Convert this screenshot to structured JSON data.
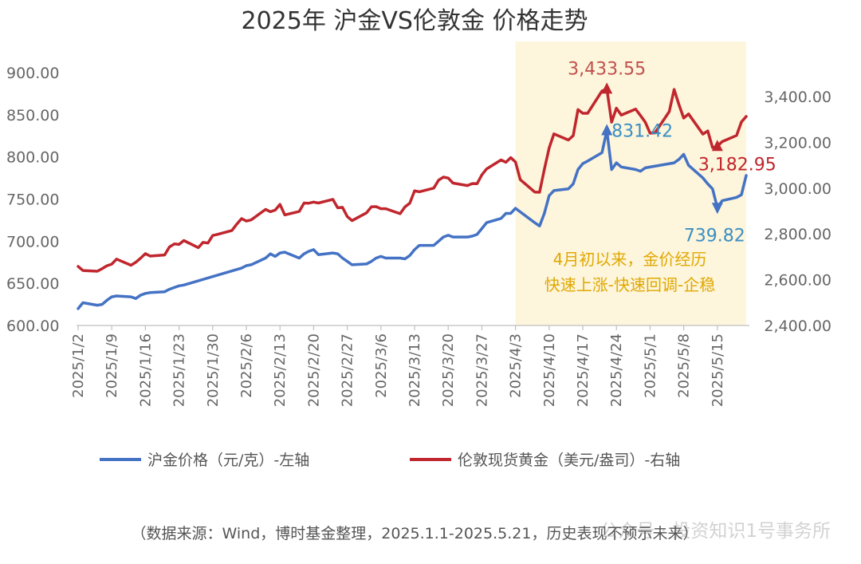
{
  "chart_data": {
    "type": "line",
    "title": "2025年 沪金VS伦敦金 价格走势",
    "x_ticks": [
      "2025/1/2",
      "2025/1/9",
      "2025/1/16",
      "2025/1/23",
      "2025/1/30",
      "2025/2/6",
      "2025/2/13",
      "2025/2/20",
      "2025/2/27",
      "2025/3/6",
      "2025/3/13",
      "2025/3/20",
      "2025/3/27",
      "2025/4/3",
      "2025/4/10",
      "2025/4/17",
      "2025/4/24",
      "2025/5/1",
      "2025/5/8",
      "2025/5/15"
    ],
    "y_left": {
      "ticks": [
        "600.00",
        "650.00",
        "700.00",
        "750.00",
        "800.00",
        "850.00",
        "900.00"
      ],
      "ylim": [
        600,
        900
      ]
    },
    "y_right": {
      "ticks": [
        "2,400.00",
        "2,600.00",
        "2,800.00",
        "3,000.00",
        "3,200.00",
        "3,400.00"
      ],
      "ylim": [
        2400,
        3500
      ]
    },
    "series": [
      {
        "name": "沪金价格（元/克）-左轴",
        "axis": "left",
        "color": "#4472c4",
        "points": [
          [
            "2025/1/2",
            620
          ],
          [
            "2025/1/3",
            627
          ],
          [
            "2025/1/6",
            624
          ],
          [
            "2025/1/7",
            625
          ],
          [
            "2025/1/8",
            630
          ],
          [
            "2025/1/9",
            634
          ],
          [
            "2025/1/10",
            635
          ],
          [
            "2025/1/13",
            634
          ],
          [
            "2025/1/14",
            632
          ],
          [
            "2025/1/15",
            636
          ],
          [
            "2025/1/16",
            638
          ],
          [
            "2025/1/17",
            639
          ],
          [
            "2025/1/20",
            640
          ],
          [
            "2025/1/21",
            643
          ],
          [
            "2025/1/22",
            645
          ],
          [
            "2025/1/23",
            647
          ],
          [
            "2025/1/24",
            648
          ],
          [
            "2025/2/5",
            668
          ],
          [
            "2025/2/6",
            671
          ],
          [
            "2025/2/7",
            672
          ],
          [
            "2025/2/10",
            680
          ],
          [
            "2025/2/11",
            685
          ],
          [
            "2025/2/12",
            682
          ],
          [
            "2025/2/13",
            686
          ],
          [
            "2025/2/14",
            687
          ],
          [
            "2025/2/17",
            680
          ],
          [
            "2025/2/18",
            685
          ],
          [
            "2025/2/19",
            688
          ],
          [
            "2025/2/20",
            690
          ],
          [
            "2025/2/21",
            684
          ],
          [
            "2025/2/24",
            686
          ],
          [
            "2025/2/25",
            685
          ],
          [
            "2025/2/26",
            680
          ],
          [
            "2025/2/27",
            676
          ],
          [
            "2025/2/28",
            672
          ],
          [
            "2025/3/3",
            673
          ],
          [
            "2025/3/4",
            676
          ],
          [
            "2025/3/5",
            680
          ],
          [
            "2025/3/6",
            682
          ],
          [
            "2025/3/7",
            680
          ],
          [
            "2025/3/10",
            680
          ],
          [
            "2025/3/11",
            679
          ],
          [
            "2025/3/12",
            683
          ],
          [
            "2025/3/13",
            690
          ],
          [
            "2025/3/14",
            695
          ],
          [
            "2025/3/17",
            695
          ],
          [
            "2025/3/18",
            700
          ],
          [
            "2025/3/19",
            705
          ],
          [
            "2025/3/20",
            707
          ],
          [
            "2025/3/21",
            705
          ],
          [
            "2025/3/24",
            705
          ],
          [
            "2025/3/25",
            706
          ],
          [
            "2025/3/26",
            708
          ],
          [
            "2025/3/27",
            715
          ],
          [
            "2025/3/28",
            722
          ],
          [
            "2025/3/31",
            727
          ],
          [
            "2025/4/1",
            733
          ],
          [
            "2025/4/2",
            733
          ],
          [
            "2025/4/3",
            739
          ],
          [
            "2025/4/7",
            722
          ],
          [
            "2025/4/8",
            718
          ],
          [
            "2025/4/9",
            733
          ],
          [
            "2025/4/10",
            754
          ],
          [
            "2025/4/11",
            760
          ],
          [
            "2025/4/14",
            762
          ],
          [
            "2025/4/15",
            768
          ],
          [
            "2025/4/16",
            785
          ],
          [
            "2025/4/17",
            792
          ],
          [
            "2025/4/18",
            795
          ],
          [
            "2025/4/21",
            805
          ],
          [
            "2025/4/22",
            831.42
          ],
          [
            "2025/4/23",
            785
          ],
          [
            "2025/4/24",
            793
          ],
          [
            "2025/4/25",
            788
          ],
          [
            "2025/4/28",
            785
          ],
          [
            "2025/4/29",
            783
          ],
          [
            "2025/4/30",
            787
          ],
          [
            "2025/5/6",
            793
          ],
          [
            "2025/5/7",
            797
          ],
          [
            "2025/5/8",
            803
          ],
          [
            "2025/5/9",
            790
          ],
          [
            "2025/5/12",
            775
          ],
          [
            "2025/5/13",
            768
          ],
          [
            "2025/5/14",
            762
          ],
          [
            "2025/5/15",
            739.82
          ],
          [
            "2025/5/16",
            748
          ],
          [
            "2025/5/19",
            752
          ],
          [
            "2025/5/20",
            755
          ],
          [
            "2025/5/21",
            778
          ]
        ]
      },
      {
        "name": "伦敦现货黄金（美元/盎司）-右轴",
        "axis": "right",
        "color": "#c0262d",
        "points": [
          [
            "2025/1/2",
            2658
          ],
          [
            "2025/1/3",
            2640
          ],
          [
            "2025/1/6",
            2637
          ],
          [
            "2025/1/7",
            2648
          ],
          [
            "2025/1/8",
            2661
          ],
          [
            "2025/1/9",
            2668
          ],
          [
            "2025/1/10",
            2690
          ],
          [
            "2025/1/13",
            2663
          ],
          [
            "2025/1/14",
            2676
          ],
          [
            "2025/1/15",
            2694
          ],
          [
            "2025/1/16",
            2714
          ],
          [
            "2025/1/17",
            2703
          ],
          [
            "2025/1/20",
            2708
          ],
          [
            "2025/1/21",
            2743
          ],
          [
            "2025/1/22",
            2756
          ],
          [
            "2025/1/23",
            2754
          ],
          [
            "2025/1/24",
            2771
          ],
          [
            "2025/1/27",
            2740
          ],
          [
            "2025/1/28",
            2763
          ],
          [
            "2025/1/29",
            2760
          ],
          [
            "2025/1/30",
            2793
          ],
          [
            "2025/1/31",
            2798
          ],
          [
            "2025/2/3",
            2815
          ],
          [
            "2025/2/4",
            2842
          ],
          [
            "2025/2/5",
            2867
          ],
          [
            "2025/2/6",
            2856
          ],
          [
            "2025/2/7",
            2861
          ],
          [
            "2025/2/10",
            2907
          ],
          [
            "2025/2/11",
            2897
          ],
          [
            "2025/2/12",
            2904
          ],
          [
            "2025/2/13",
            2929
          ],
          [
            "2025/2/14",
            2883
          ],
          [
            "2025/2/17",
            2898
          ],
          [
            "2025/2/18",
            2935
          ],
          [
            "2025/2/19",
            2934
          ],
          [
            "2025/2/20",
            2939
          ],
          [
            "2025/2/21",
            2935
          ],
          [
            "2025/2/24",
            2951
          ],
          [
            "2025/2/25",
            2914
          ],
          [
            "2025/2/26",
            2916
          ],
          [
            "2025/2/27",
            2876
          ],
          [
            "2025/2/28",
            2858
          ],
          [
            "2025/3/3",
            2892
          ],
          [
            "2025/3/4",
            2918
          ],
          [
            "2025/3/5",
            2919
          ],
          [
            "2025/3/6",
            2910
          ],
          [
            "2025/3/7",
            2910
          ],
          [
            "2025/3/10",
            2888
          ],
          [
            "2025/3/11",
            2918
          ],
          [
            "2025/3/12",
            2934
          ],
          [
            "2025/3/13",
            2988
          ],
          [
            "2025/3/14",
            2984
          ],
          [
            "2025/3/17",
            3000
          ],
          [
            "2025/3/18",
            3035
          ],
          [
            "2025/3/19",
            3048
          ],
          [
            "2025/3/20",
            3044
          ],
          [
            "2025/3/21",
            3022
          ],
          [
            "2025/3/24",
            3011
          ],
          [
            "2025/3/25",
            3020
          ],
          [
            "2025/3/26",
            3019
          ],
          [
            "2025/3/27",
            3058
          ],
          [
            "2025/3/28",
            3084
          ],
          [
            "2025/3/31",
            3123
          ],
          [
            "2025/4/1",
            3113
          ],
          [
            "2025/4/2",
            3133
          ],
          [
            "2025/4/3",
            3114
          ],
          [
            "2025/4/4",
            3037
          ],
          [
            "2025/4/7",
            2983
          ],
          [
            "2025/4/8",
            2982
          ],
          [
            "2025/4/9",
            3082
          ],
          [
            "2025/4/10",
            3175
          ],
          [
            "2025/4/11",
            3237
          ],
          [
            "2025/4/14",
            3210
          ],
          [
            "2025/4/15",
            3229
          ],
          [
            "2025/4/16",
            3343
          ],
          [
            "2025/4/17",
            3327
          ],
          [
            "2025/4/18",
            3327
          ],
          [
            "2025/4/21",
            3424
          ],
          [
            "2025/4/22",
            3433.55
          ],
          [
            "2025/4/23",
            3288
          ],
          [
            "2025/4/24",
            3349
          ],
          [
            "2025/4/25",
            3319
          ],
          [
            "2025/4/28",
            3345
          ],
          [
            "2025/4/29",
            3317
          ],
          [
            "2025/4/30",
            3288
          ],
          [
            "2025/5/1",
            3240
          ],
          [
            "2025/5/2",
            3241
          ],
          [
            "2025/5/5",
            3334
          ],
          [
            "2025/5/6",
            3431
          ],
          [
            "2025/5/7",
            3365
          ],
          [
            "2025/5/8",
            3306
          ],
          [
            "2025/5/9",
            3324
          ],
          [
            "2025/5/12",
            3236
          ],
          [
            "2025/5/13",
            3250
          ],
          [
            "2025/5/14",
            3177
          ],
          [
            "2025/5/15",
            3182.95
          ],
          [
            "2025/5/16",
            3203
          ],
          [
            "2025/5/19",
            3230
          ],
          [
            "2025/5/20",
            3289
          ],
          [
            "2025/5/21",
            3313
          ]
        ]
      }
    ],
    "highlight": {
      "from": "2025/4/3",
      "to": "2025/5/21",
      "color": "#fdf5dc"
    },
    "annotations": [
      {
        "text": "3,433.55",
        "series": 1,
        "x": "2025/4/22",
        "color": "#c0504d"
      },
      {
        "text": "831.42",
        "series": 0,
        "x": "2025/4/22",
        "color": "#3b8fc4"
      },
      {
        "text": "3,182.95",
        "series": 1,
        "x": "2025/5/15",
        "color": "#c0262d"
      },
      {
        "text": "739.82",
        "series": 0,
        "x": "2025/5/15",
        "color": "#3b8fc4"
      }
    ],
    "note_lines": [
      "4月初以来，金价经历",
      "快速上涨-快速回调-企稳"
    ],
    "grid": false,
    "legend_position": "bottom"
  },
  "footer": {
    "source": "（数据来源：Wind，博时基金整理，2025.1.1-2025.5.21，历史表现不预示未来）",
    "watermark": "公众号 · 投资知识1号事务所"
  }
}
